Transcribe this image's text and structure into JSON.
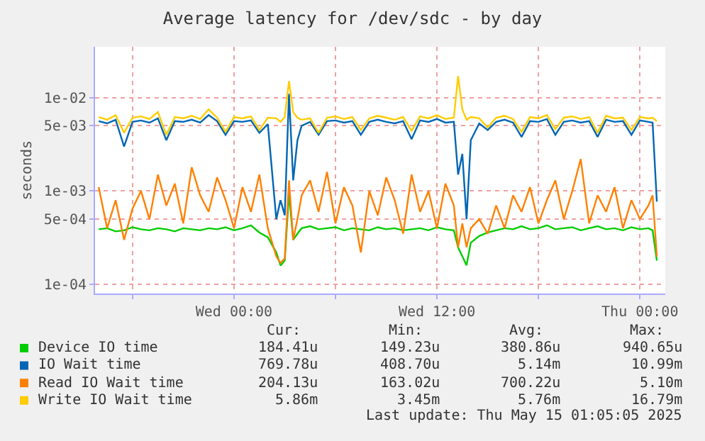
{
  "chart_data": {
    "type": "line",
    "title": "Average latency for /dev/sdc - by day",
    "ylabel": "seconds",
    "x": [
      "2025-05-13T16:00",
      "2025-05-13T16:30",
      "2025-05-13T17:00",
      "2025-05-13T17:30",
      "2025-05-13T18:00",
      "2025-05-13T18:30",
      "2025-05-13T19:00",
      "2025-05-13T19:30",
      "2025-05-13T20:00",
      "2025-05-13T20:30",
      "2025-05-13T21:00",
      "2025-05-13T21:30",
      "2025-05-13T22:00",
      "2025-05-13T22:30",
      "2025-05-13T23:00",
      "2025-05-13T23:30",
      "2025-05-14T00:00",
      "2025-05-14T00:30",
      "2025-05-14T01:00",
      "2025-05-14T01:30",
      "2025-05-14T02:00",
      "2025-05-14T02:30",
      "2025-05-14T02:45",
      "2025-05-14T03:00",
      "2025-05-14T03:15",
      "2025-05-14T03:30",
      "2025-05-14T03:45",
      "2025-05-14T04:00",
      "2025-05-14T04:30",
      "2025-05-14T05:00",
      "2025-05-14T05:30",
      "2025-05-14T06:00",
      "2025-05-14T06:30",
      "2025-05-14T07:00",
      "2025-05-14T07:30",
      "2025-05-14T08:00",
      "2025-05-14T08:30",
      "2025-05-14T09:00",
      "2025-05-14T09:30",
      "2025-05-14T10:00",
      "2025-05-14T10:30",
      "2025-05-14T11:00",
      "2025-05-14T11:30",
      "2025-05-14T12:00",
      "2025-05-14T12:30",
      "2025-05-14T13:00",
      "2025-05-14T13:15",
      "2025-05-14T13:30",
      "2025-05-14T13:45",
      "2025-05-14T14:00",
      "2025-05-14T14:30",
      "2025-05-14T15:00",
      "2025-05-14T15:30",
      "2025-05-14T16:00",
      "2025-05-14T16:30",
      "2025-05-14T17:00",
      "2025-05-14T17:30",
      "2025-05-14T18:00",
      "2025-05-14T18:30",
      "2025-05-14T19:00",
      "2025-05-14T19:30",
      "2025-05-14T20:00",
      "2025-05-14T20:30",
      "2025-05-14T21:00",
      "2025-05-14T21:30",
      "2025-05-14T22:00",
      "2025-05-14T22:30",
      "2025-05-14T23:00",
      "2025-05-14T23:30",
      "2025-05-15T00:00",
      "2025-05-15T00:30",
      "2025-05-15T00:45",
      "2025-05-15T01:00"
    ],
    "series": [
      {
        "name": "Device IO time",
        "color": "#00cc00",
        "values": [
          0.00039,
          0.0004,
          0.00037,
          0.00038,
          0.00041,
          0.00039,
          0.00038,
          0.0004,
          0.00039,
          0.00037,
          0.0004,
          0.00039,
          0.00038,
          0.0004,
          0.00039,
          0.00041,
          0.00038,
          0.0004,
          0.00043,
          0.00036,
          0.00032,
          0.00022,
          0.00016,
          0.00018,
          0.00094,
          0.0003,
          0.00035,
          0.0004,
          0.00042,
          0.00039,
          0.0004,
          0.00041,
          0.00038,
          0.0004,
          0.00039,
          0.00038,
          0.00041,
          0.00039,
          0.0004,
          0.00038,
          0.00039,
          0.0004,
          0.00038,
          0.00041,
          0.00039,
          0.00038,
          0.00025,
          0.0002,
          0.00016,
          0.00028,
          0.00033,
          0.00036,
          0.00038,
          0.0004,
          0.00039,
          0.00042,
          0.00039,
          0.0004,
          0.00043,
          0.00039,
          0.0004,
          0.00041,
          0.00038,
          0.0004,
          0.00042,
          0.00039,
          0.0004,
          0.00038,
          0.00041,
          0.00039,
          0.0004,
          0.00038,
          0.00018
        ]
      },
      {
        "name": "IO Wait time",
        "color": "#0066b3",
        "values": [
          0.0056,
          0.0053,
          0.0058,
          0.003,
          0.0055,
          0.0057,
          0.0054,
          0.006,
          0.0035,
          0.0056,
          0.0055,
          0.0058,
          0.0054,
          0.0065,
          0.0056,
          0.004,
          0.0056,
          0.0055,
          0.0057,
          0.0042,
          0.0052,
          0.0005,
          0.0008,
          0.00055,
          0.011,
          0.0013,
          0.0035,
          0.005,
          0.0055,
          0.004,
          0.0056,
          0.0057,
          0.0054,
          0.0056,
          0.004,
          0.0055,
          0.0058,
          0.0055,
          0.0053,
          0.0056,
          0.0036,
          0.0057,
          0.0055,
          0.0059,
          0.0054,
          0.0055,
          0.0015,
          0.0025,
          0.0005,
          0.0035,
          0.0053,
          0.0045,
          0.0055,
          0.0058,
          0.0054,
          0.0038,
          0.0056,
          0.0055,
          0.0059,
          0.004,
          0.0055,
          0.0057,
          0.0054,
          0.0056,
          0.0038,
          0.0058,
          0.0055,
          0.0056,
          0.004,
          0.0057,
          0.0055,
          0.0054,
          0.00077
        ]
      },
      {
        "name": "Read IO Wait time",
        "color": "#ff8000",
        "values": [
          0.0011,
          0.0004,
          0.0008,
          0.0003,
          0.00065,
          0.001,
          0.0005,
          0.0015,
          0.0007,
          0.0012,
          0.00045,
          0.0018,
          0.0009,
          0.0006,
          0.0014,
          0.0008,
          0.0004,
          0.0011,
          0.0006,
          0.0015,
          0.0004,
          0.0002,
          0.00017,
          0.00019,
          0.0013,
          0.0003,
          0.0005,
          0.0009,
          0.0013,
          0.0006,
          0.0016,
          0.00045,
          0.0011,
          0.0007,
          0.00022,
          0.001,
          0.00055,
          0.0014,
          0.0008,
          0.00035,
          0.0015,
          0.0006,
          0.001,
          0.0004,
          0.0012,
          0.0007,
          0.00025,
          0.00045,
          0.00025,
          0.0004,
          0.0005,
          0.00035,
          0.0007,
          0.0004,
          0.0009,
          0.0006,
          0.0011,
          0.00045,
          0.0008,
          0.0013,
          0.0005,
          0.001,
          0.0022,
          0.00045,
          0.0009,
          0.0006,
          0.0011,
          0.0004,
          0.0008,
          0.0005,
          0.0007,
          0.0009,
          0.0002
        ]
      },
      {
        "name": "Write IO Wait time",
        "color": "#ffcc00",
        "values": [
          0.0062,
          0.0058,
          0.0065,
          0.0042,
          0.0061,
          0.0063,
          0.0059,
          0.007,
          0.004,
          0.0062,
          0.006,
          0.0064,
          0.0059,
          0.0075,
          0.0061,
          0.0043,
          0.0062,
          0.006,
          0.0063,
          0.0045,
          0.0061,
          0.006,
          0.0055,
          0.0062,
          0.015,
          0.007,
          0.0061,
          0.0058,
          0.006,
          0.0042,
          0.0061,
          0.0063,
          0.0059,
          0.0062,
          0.0045,
          0.006,
          0.0064,
          0.0061,
          0.0058,
          0.0062,
          0.0044,
          0.0063,
          0.006,
          0.0065,
          0.0059,
          0.0061,
          0.017,
          0.0075,
          0.0058,
          0.0062,
          0.006,
          0.0048,
          0.0061,
          0.0064,
          0.0059,
          0.0043,
          0.0062,
          0.006,
          0.0065,
          0.0046,
          0.0061,
          0.0063,
          0.0059,
          0.0062,
          0.0042,
          0.0064,
          0.006,
          0.0061,
          0.0045,
          0.0062,
          0.006,
          0.0061,
          0.0056
        ]
      }
    ],
    "log": "y",
    "ylim": [
      8e-05,
      0.035
    ],
    "yticks": [
      {
        "value": 0.0001,
        "label": "1e-04"
      },
      {
        "value": 0.0005,
        "label": "5e-04"
      },
      {
        "value": 0.001,
        "label": "1e-03"
      },
      {
        "value": 0.005,
        "label": "5e-03"
      },
      {
        "value": 0.01,
        "label": "1e-02"
      }
    ],
    "xlim": [
      "2025-05-13T15:47",
      "2025-05-15T01:30"
    ],
    "xticks": [
      {
        "value": "2025-05-13T18:00",
        "label": null
      },
      {
        "value": "2025-05-14T00:00",
        "label": "Wed 00:00"
      },
      {
        "value": "2025-05-14T06:00",
        "label": null
      },
      {
        "value": "2025-05-14T12:00",
        "label": "Wed 12:00"
      },
      {
        "value": "2025-05-14T18:00",
        "label": null
      },
      {
        "value": "2025-05-15T00:00",
        "label": "Thu 00:00"
      }
    ],
    "grid": true,
    "legend": "bottom",
    "marker": "none",
    "line_style": "solid",
    "annotations": [
      "Cur:",
      "Min:",
      "Avg:",
      "Max:",
      "184.41u",
      "149.23u",
      "380.86u",
      "940.65u",
      "769.78u",
      "408.70u",
      "5.14m",
      "10.99m",
      "204.13u",
      "163.02u",
      "700.22u",
      "5.10m",
      "5.86m",
      "3.45m",
      "5.76m",
      "16.79m",
      "Last update: Thu May 15 01:05:05 2025"
    ]
  }
}
